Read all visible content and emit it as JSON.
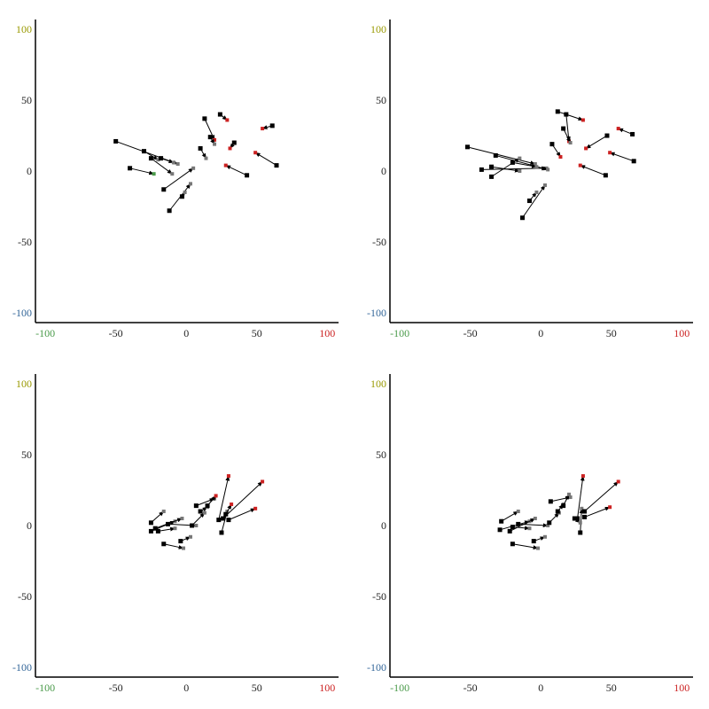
{
  "colors": {
    "axis": "#000000",
    "tick": "#222222",
    "x_neg_extreme": "#4a9a4a",
    "x_pos_extreme": "#cc2222",
    "y_pos_extreme": "#999900",
    "y_neg_extreme": "#336699",
    "start_marker": "#000000"
  },
  "chart_data": [
    {
      "type": "scatter",
      "xlim": [
        -107,
        108
      ],
      "ylim": [
        -107,
        107
      ],
      "x_ticks": [
        "-100",
        "-50",
        "0",
        "50",
        "100"
      ],
      "y_ticks": [
        "100",
        "50",
        "0",
        "-50",
        "-100"
      ],
      "arrows": [
        {
          "from": [
            -50,
            21
          ],
          "to": [
            -6,
            5
          ],
          "end_color": "#777777"
        },
        {
          "from": [
            -40,
            2
          ],
          "to": [
            -23,
            -2
          ],
          "end_color": "#4a9a4a"
        },
        {
          "from": [
            -25,
            9
          ],
          "to": [
            -10,
            -2
          ],
          "end_color": "#777777"
        },
        {
          "from": [
            -16,
            -13
          ],
          "to": [
            5,
            2
          ],
          "end_color": "#777777"
        },
        {
          "from": [
            -12,
            -28
          ],
          "to": [
            3,
            -9
          ],
          "end_color": "#777777"
        },
        {
          "from": [
            -3,
            -18
          ],
          "to": [
            -1,
            -15
          ],
          "end_color": "#777777"
        },
        {
          "from": [
            13,
            37
          ],
          "to": [
            20,
            22
          ],
          "end_color": "#cc2222"
        },
        {
          "from": [
            24,
            40
          ],
          "to": [
            29,
            36
          ],
          "end_color": "#cc2222"
        },
        {
          "from": [
            34,
            20
          ],
          "to": [
            31,
            16
          ],
          "end_color": "#cc2222"
        },
        {
          "from": [
            43,
            -3
          ],
          "to": [
            28,
            4
          ],
          "end_color": "#cc2222"
        },
        {
          "from": [
            64,
            4
          ],
          "to": [
            49,
            13
          ],
          "end_color": "#cc2222"
        },
        {
          "from": [
            61,
            32
          ],
          "to": [
            54,
            30
          ],
          "end_color": "#cc2222"
        },
        {
          "from": [
            10,
            16
          ],
          "to": [
            14,
            9
          ],
          "end_color": "#777777"
        },
        {
          "from": [
            17,
            24
          ],
          "to": [
            20,
            19
          ],
          "end_color": "#777777"
        },
        {
          "from": [
            -30,
            14
          ],
          "to": [
            -20,
            8
          ],
          "end_color": "#777777"
        },
        {
          "from": [
            -18,
            9
          ],
          "to": [
            -9,
            6
          ],
          "end_color": "#777777"
        }
      ]
    },
    {
      "type": "scatter",
      "xlim": [
        -107,
        108
      ],
      "ylim": [
        -107,
        107
      ],
      "x_ticks": [
        "-100",
        "-50",
        "0",
        "50",
        "100"
      ],
      "y_ticks": [
        "100",
        "50",
        "0",
        "-50",
        "-100"
      ],
      "arrows": [
        {
          "from": [
            -52,
            17
          ],
          "to": [
            -4,
            5
          ],
          "end_color": "#777777"
        },
        {
          "from": [
            -42,
            1
          ],
          "to": [
            4,
            2
          ],
          "end_color": "#777777"
        },
        {
          "from": [
            -35,
            3
          ],
          "to": [
            -15,
            0
          ],
          "end_color": "#777777"
        },
        {
          "from": [
            -32,
            11
          ],
          "to": [
            5,
            1
          ],
          "end_color": "#777777"
        },
        {
          "from": [
            -35,
            -4
          ],
          "to": [
            -15,
            9
          ],
          "end_color": "#777777"
        },
        {
          "from": [
            -20,
            6
          ],
          "to": [
            -3,
            3
          ],
          "end_color": "#777777"
        },
        {
          "from": [
            -13,
            -33
          ],
          "to": [
            3,
            -10
          ],
          "end_color": "#777777"
        },
        {
          "from": [
            -8,
            -21
          ],
          "to": [
            -3,
            -15
          ],
          "end_color": "#777777"
        },
        {
          "from": [
            12,
            42
          ],
          "to": [
            30,
            36
          ],
          "end_color": "#cc2222"
        },
        {
          "from": [
            18,
            40
          ],
          "to": [
            20,
            21
          ],
          "end_color": "#cc2222"
        },
        {
          "from": [
            16,
            30
          ],
          "to": [
            21,
            20
          ],
          "end_color": "#777777"
        },
        {
          "from": [
            8,
            19
          ],
          "to": [
            14,
            10
          ],
          "end_color": "#cc2222"
        },
        {
          "from": [
            47,
            25
          ],
          "to": [
            32,
            16
          ],
          "end_color": "#cc2222"
        },
        {
          "from": [
            46,
            -3
          ],
          "to": [
            28,
            4
          ],
          "end_color": "#cc2222"
        },
        {
          "from": [
            66,
            7
          ],
          "to": [
            49,
            13
          ],
          "end_color": "#cc2222"
        },
        {
          "from": [
            65,
            26
          ],
          "to": [
            55,
            30
          ],
          "end_color": "#cc2222"
        }
      ]
    },
    {
      "type": "scatter",
      "xlim": [
        -107,
        108
      ],
      "ylim": [
        -107,
        107
      ],
      "x_ticks": [
        "-100",
        "-50",
        "0",
        "50",
        "100"
      ],
      "y_ticks": [
        "100",
        "50",
        "0",
        "-50",
        "-100"
      ],
      "arrows": [
        {
          "from": [
            -25,
            2
          ],
          "to": [
            -16,
            10
          ],
          "end_color": "#777777"
        },
        {
          "from": [
            -25,
            -4
          ],
          "to": [
            -8,
            3
          ],
          "end_color": "#777777"
        },
        {
          "from": [
            -22,
            -2
          ],
          "to": [
            -3,
            5
          ],
          "end_color": "#777777"
        },
        {
          "from": [
            -20,
            -4
          ],
          "to": [
            -8,
            -2
          ],
          "end_color": "#777777"
        },
        {
          "from": [
            -16,
            -13
          ],
          "to": [
            -2,
            -16
          ],
          "end_color": "#777777"
        },
        {
          "from": [
            -13,
            1
          ],
          "to": [
            7,
            0
          ],
          "end_color": "#777777"
        },
        {
          "from": [
            -4,
            -11
          ],
          "to": [
            3,
            -8
          ],
          "end_color": "#777777"
        },
        {
          "from": [
            7,
            14
          ],
          "to": [
            20,
            19
          ],
          "end_color": "#777777"
        },
        {
          "from": [
            4,
            0
          ],
          "to": [
            13,
            9
          ],
          "end_color": "#777777"
        },
        {
          "from": [
            10,
            10
          ],
          "to": [
            15,
            13
          ],
          "end_color": "#777777"
        },
        {
          "from": [
            15,
            14
          ],
          "to": [
            21,
            21
          ],
          "end_color": "#cc2222"
        },
        {
          "from": [
            23,
            4
          ],
          "to": [
            30,
            35
          ],
          "end_color": "#cc2222"
        },
        {
          "from": [
            25,
            -5
          ],
          "to": [
            29,
            10
          ],
          "end_color": "#777777"
        },
        {
          "from": [
            26,
            5
          ],
          "to": [
            54,
            31
          ],
          "end_color": "#cc2222"
        },
        {
          "from": [
            28,
            8
          ],
          "to": [
            32,
            15
          ],
          "end_color": "#cc2222"
        },
        {
          "from": [
            30,
            4
          ],
          "to": [
            49,
            12
          ],
          "end_color": "#cc2222"
        }
      ]
    },
    {
      "type": "scatter",
      "xlim": [
        -107,
        108
      ],
      "ylim": [
        -107,
        107
      ],
      "x_ticks": [
        "-100",
        "-50",
        "0",
        "50",
        "100"
      ],
      "y_ticks": [
        "100",
        "50",
        "0",
        "-50",
        "-100"
      ],
      "arrows": [
        {
          "from": [
            -28,
            3
          ],
          "to": [
            -16,
            10
          ],
          "end_color": "#777777"
        },
        {
          "from": [
            -29,
            -3
          ],
          "to": [
            -8,
            3
          ],
          "end_color": "#777777"
        },
        {
          "from": [
            -22,
            -4
          ],
          "to": [
            -4,
            5
          ],
          "end_color": "#777777"
        },
        {
          "from": [
            -20,
            -1
          ],
          "to": [
            -8,
            -2
          ],
          "end_color": "#777777"
        },
        {
          "from": [
            -20,
            -13
          ],
          "to": [
            -2,
            -16
          ],
          "end_color": "#777777"
        },
        {
          "from": [
            -16,
            1
          ],
          "to": [
            5,
            0
          ],
          "end_color": "#777777"
        },
        {
          "from": [
            -5,
            -11
          ],
          "to": [
            3,
            -8
          ],
          "end_color": "#777777"
        },
        {
          "from": [
            7,
            17
          ],
          "to": [
            21,
            20
          ],
          "end_color": "#777777"
        },
        {
          "from": [
            6,
            2
          ],
          "to": [
            13,
            9
          ],
          "end_color": "#777777"
        },
        {
          "from": [
            12,
            10
          ],
          "to": [
            16,
            15
          ],
          "end_color": "#777777"
        },
        {
          "from": [
            16,
            14
          ],
          "to": [
            20,
            22
          ],
          "end_color": "#777777"
        },
        {
          "from": [
            26,
            5
          ],
          "to": [
            30,
            35
          ],
          "end_color": "#cc2222"
        },
        {
          "from": [
            28,
            -5
          ],
          "to": [
            29,
            12
          ],
          "end_color": "#777777"
        },
        {
          "from": [
            31,
            10
          ],
          "to": [
            55,
            31
          ],
          "end_color": "#cc2222"
        },
        {
          "from": [
            31,
            6
          ],
          "to": [
            49,
            13
          ],
          "end_color": "#cc2222"
        },
        {
          "from": [
            24,
            5
          ],
          "to": [
            28,
            2
          ],
          "end_color": "#777777"
        }
      ]
    }
  ]
}
